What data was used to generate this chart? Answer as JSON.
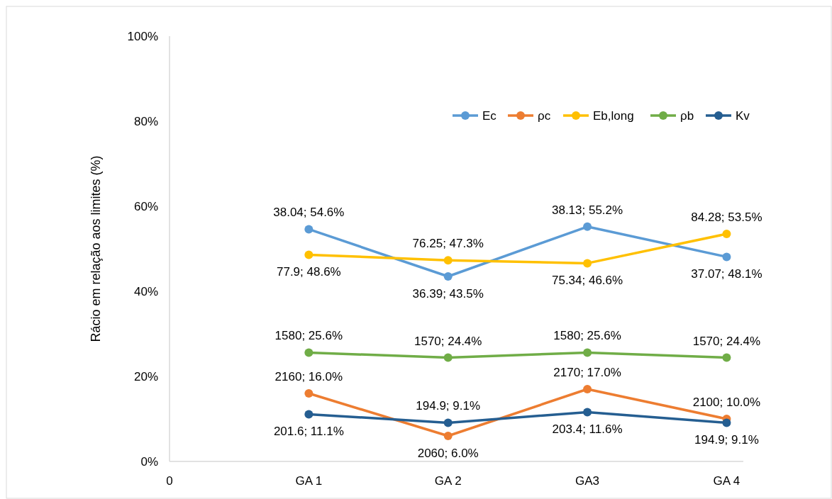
{
  "chart_data": {
    "type": "line",
    "ylabel": "Rácio em relação aos limites (%)",
    "categories": [
      "0",
      "GA 1",
      "GA 2",
      "GA3",
      "GA 4"
    ],
    "ylim": [
      0,
      100
    ],
    "yticks": [
      {
        "value": 0,
        "label": "0%"
      },
      {
        "value": 20,
        "label": "20%"
      },
      {
        "value": 40,
        "label": "40%"
      },
      {
        "value": 60,
        "label": "60%"
      },
      {
        "value": 80,
        "label": "80%"
      },
      {
        "value": 100,
        "label": "100%"
      }
    ],
    "series": [
      {
        "name": "Ec",
        "color": "#5b9bd5",
        "values": [
          null,
          54.6,
          43.5,
          55.2,
          48.1
        ],
        "value_labels": [
          null,
          "38.04; 54.6%",
          "36.39; 43.5%",
          "38.13; 55.2%",
          "37.07; 48.1%"
        ]
      },
      {
        "name": "ρc",
        "color": "#ed7d31",
        "values": [
          null,
          16.0,
          6.0,
          17.0,
          10.0
        ],
        "value_labels": [
          null,
          "2160; 16.0%",
          "2060; 6.0%",
          "2170; 17.0%",
          "2100; 10.0%"
        ]
      },
      {
        "name": "Eb,long",
        "color": "#ffc000",
        "values": [
          null,
          48.6,
          47.3,
          46.6,
          53.5
        ],
        "value_labels": [
          null,
          "77.9; 48.6%",
          "76.25; 47.3%",
          "75.34; 46.6%",
          "84.28; 53.5%"
        ]
      },
      {
        "name": "ρb",
        "color": "#70ad47",
        "values": [
          null,
          25.6,
          24.4,
          25.6,
          24.4
        ],
        "value_labels": [
          null,
          "1580; 25.6%",
          "1570; 24.4%",
          "1580; 25.6%",
          "1570; 24.4%"
        ]
      },
      {
        "name": "Kv",
        "color": "#255e91",
        "values": [
          null,
          11.1,
          9.1,
          11.6,
          9.1
        ],
        "value_labels": [
          null,
          "201.6; 11.1%",
          "194.9; 9.1%",
          "203.4; 11.6%",
          "194.9; 9.1%"
        ]
      }
    ],
    "legend": "top right",
    "marker": "circle",
    "line_style": "solid",
    "grid": false
  }
}
